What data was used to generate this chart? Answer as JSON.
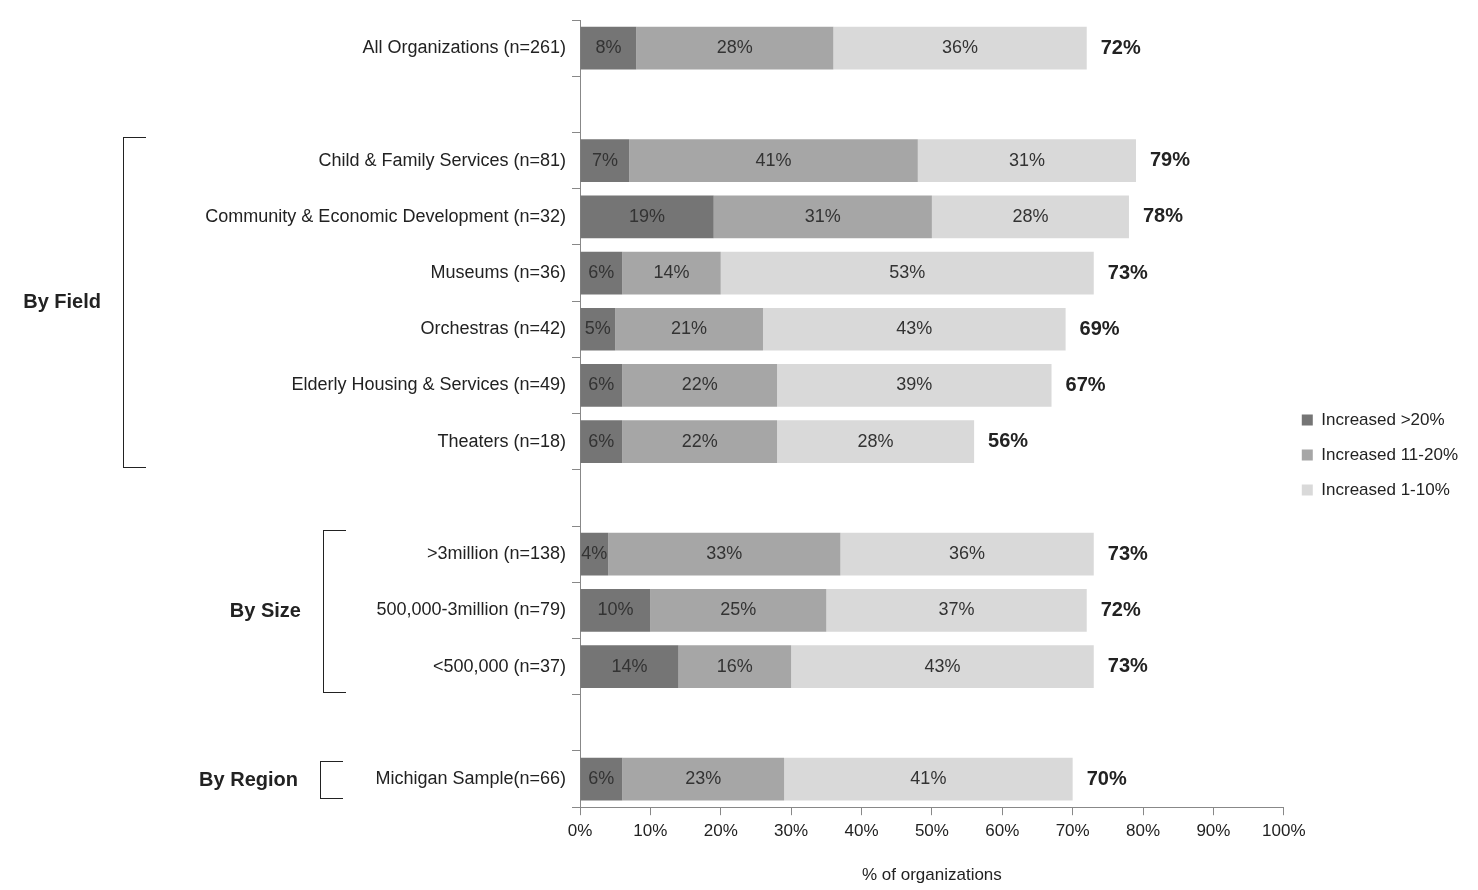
{
  "chart_data": {
    "type": "bar",
    "orientation": "horizontal",
    "stacked": true,
    "categories": [
      "All Organizations (n=261)",
      null,
      "Child & Family Services (n=81)",
      "Community & Economic Development (n=32)",
      "Museums (n=36)",
      "Orchestras (n=42)",
      "Elderly Housing & Services (n=49)",
      "Theaters (n=18)",
      null,
      ">3million (n=138)",
      "500,000-3million (n=79)",
      "<500,000 (n=37)",
      null,
      "Michigan Sample(n=66)"
    ],
    "series": [
      {
        "name": "Increased >20%",
        "color": "#757575",
        "values": [
          8,
          null,
          7,
          19,
          6,
          5,
          6,
          6,
          null,
          4,
          10,
          14,
          null,
          6
        ],
        "value_labels": [
          "8%",
          null,
          "7%",
          "19%",
          "6%",
          "5%",
          "6%",
          "6%",
          null,
          "4%",
          "10%",
          "14%",
          null,
          "6%"
        ]
      },
      {
        "name": "Increased 11-20%",
        "color": "#a6a6a6",
        "values": [
          28,
          null,
          41,
          31,
          14,
          21,
          22,
          22,
          null,
          33,
          25,
          16,
          null,
          23
        ],
        "value_labels": [
          "28%",
          null,
          "41%",
          "31%",
          "14%",
          "21%",
          "22%",
          "22%",
          null,
          "33%",
          "25%",
          "16%",
          null,
          "23%"
        ]
      },
      {
        "name": "Increased 1-10%",
        "color": "#d9d9d9",
        "values": [
          36,
          null,
          31,
          28,
          53,
          43,
          39,
          28,
          null,
          36,
          37,
          43,
          null,
          41
        ],
        "value_labels": [
          "36%",
          null,
          "31%",
          "28%",
          "53%",
          "43%",
          "39%",
          "28%",
          null,
          "36%",
          "37%",
          "43%",
          null,
          "41%"
        ]
      }
    ],
    "totals": [
      "72%",
      null,
      "79%",
      "78%",
      "73%",
      "69%",
      "67%",
      "56%",
      null,
      "73%",
      "72%",
      "73%",
      null,
      "70%"
    ],
    "xlim": [
      0,
      100
    ],
    "xticks": [
      {
        "value": 0,
        "label": "0%"
      },
      {
        "value": 10,
        "label": "10%"
      },
      {
        "value": 20,
        "label": "20%"
      },
      {
        "value": 30,
        "label": "30%"
      },
      {
        "value": 40,
        "label": "40%"
      },
      {
        "value": 50,
        "label": "50%"
      },
      {
        "value": 60,
        "label": "60%"
      },
      {
        "value": 70,
        "label": "70%"
      },
      {
        "value": 80,
        "label": "80%"
      },
      {
        "value": 90,
        "label": "90%"
      },
      {
        "value": 100,
        "label": "100%"
      }
    ],
    "xlabel": "% of organizations",
    "annotations": [
      "By Field",
      "By Size",
      "By Region"
    ],
    "grid": false,
    "legend": "right"
  }
}
